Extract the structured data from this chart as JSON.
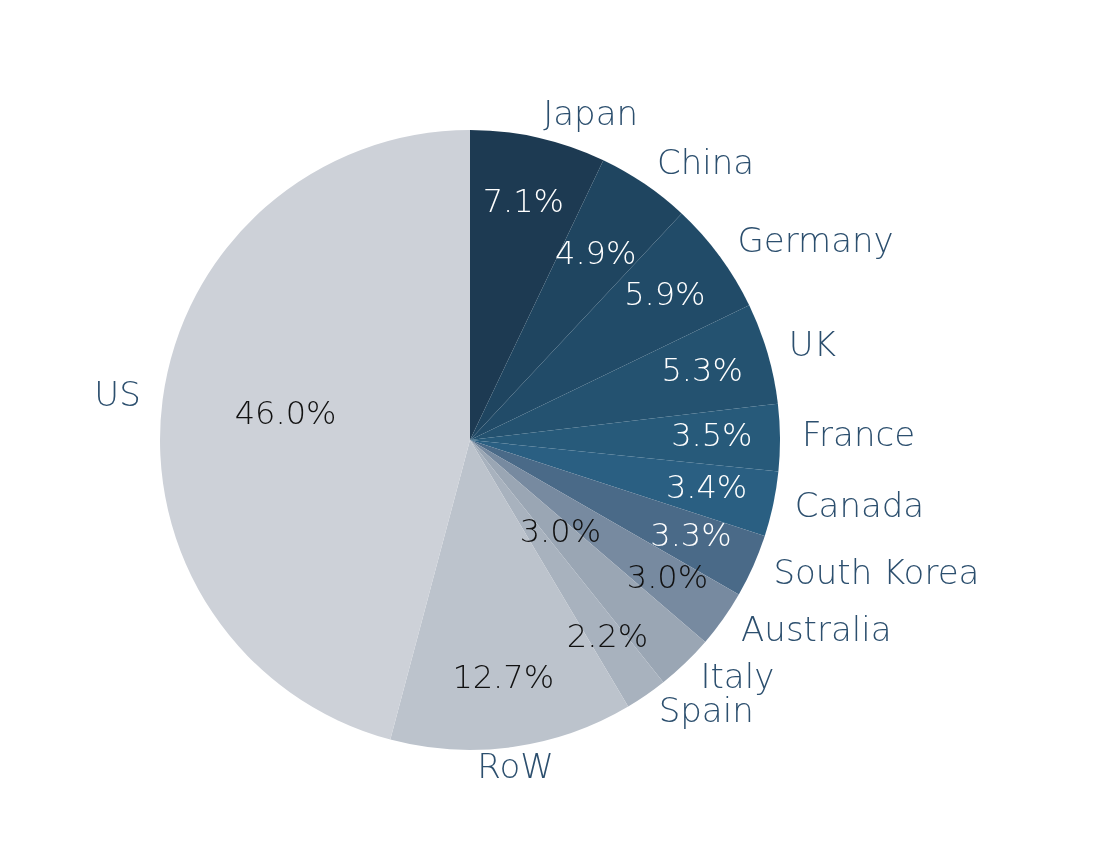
{
  "chart_data": {
    "type": "pie",
    "categories": [
      "Japan",
      "China",
      "Germany",
      "UK",
      "France",
      "Canada",
      "South Korea",
      "Australia",
      "Italy",
      "Spain",
      "RoW",
      "US"
    ],
    "values": [
      7.1,
      4.9,
      5.9,
      5.3,
      3.5,
      3.4,
      3.3,
      3.0,
      3.0,
      2.2,
      12.7,
      46.0
    ],
    "value_labels": [
      "7.1%",
      "4.9%",
      "5.9%",
      "5.3%",
      "3.5%",
      "3.4%",
      "3.3%",
      "3.0%",
      "3.0%",
      "2.2%",
      "12.7%",
      "46.0%"
    ],
    "colors": [
      "#1d3a52",
      "#1f4560",
      "#214b68",
      "#245270",
      "#275a7a",
      "#2a5f82",
      "#4a6a88",
      "#778aa0",
      "#9aa6b4",
      "#a8b2be",
      "#bcc3cc",
      "#cdd1d8"
    ],
    "legend": false
  }
}
